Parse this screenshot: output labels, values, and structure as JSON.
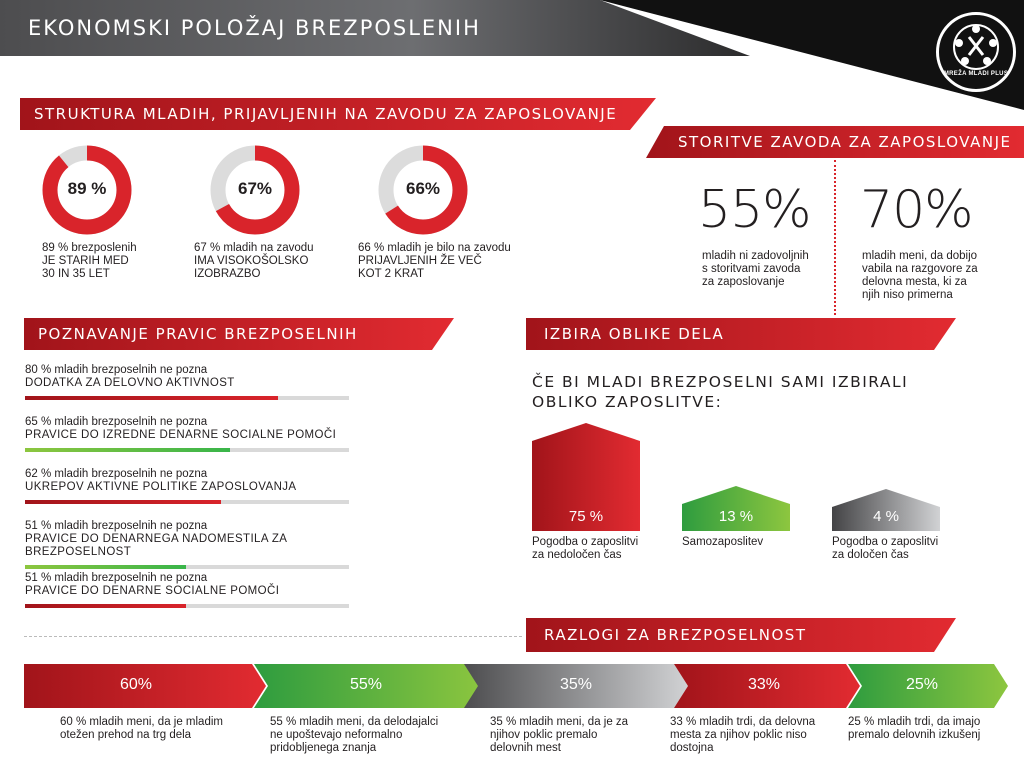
{
  "title": "EKONOMSKI POLOŽAJ BREZPOSLENIH",
  "logo": {
    "text": "MREŽA MLADI PLUS",
    "icon": "globe-people-icon"
  },
  "structure": {
    "heading": "STRUKTURA MLADIH, PRIJAVLJENIH NA ZAVODU ZA ZAPOSLOVANJE",
    "items": [
      {
        "pct": 89,
        "pct_label": "89 %",
        "line1": "89 % brezposlenih",
        "line2": "JE STARIH MED",
        "line3": "30 IN 35 LET"
      },
      {
        "pct": 67,
        "pct_label": "67%",
        "line1": "67 % mladih na zavodu",
        "line2": "IMA VISOKOŠOLSKO",
        "line3": "IZOBRAZBO"
      },
      {
        "pct": 66,
        "pct_label": "66%",
        "line1": "66 % mladih je bilo na zavodu",
        "line2": "PRIJAVLJENIH ŽE VEČ",
        "line3": "KOT 2 KRAT"
      }
    ]
  },
  "services": {
    "heading": "STORITVE ZAVODA ZA ZAPOSLOVANJE",
    "items": [
      {
        "pct_label": "55%",
        "text": [
          "mladih ni zadovoljnih",
          "s storitvami zavoda",
          "za zaposlovanje"
        ]
      },
      {
        "pct_label": "70%",
        "text": [
          "mladih meni, da dobijo",
          "vabila na razgovore za",
          "delovna mesta, ki za",
          "njih niso primerna"
        ]
      }
    ]
  },
  "rights": {
    "heading": "POZNAVANJE PRAVIC BREZPOSELNIH",
    "items": [
      {
        "pct": 80,
        "line1": "80 % mladih brezposelnih ne pozna",
        "line2": "DODATKA ZA DELOVNO AKTIVNOST",
        "color": "#d9242b"
      },
      {
        "pct": 65,
        "line1": "65 % mladih brezposelnih ne pozna",
        "line2": "PRAVICE DO IZREDNE DENARNE SOCIALNE POMOČI",
        "color": "#39b54a"
      },
      {
        "pct": 62,
        "line1": "62 % mladih brezposelnih ne pozna",
        "line2": "UKREPOV AKTIVNE POLITIKE ZAPOSLOVANJA",
        "color": "#d9242b"
      },
      {
        "pct": 51,
        "line1": "51 % mladih brezposelnih ne pozna",
        "line2": "PRAVICE DO DENARNEGA NADOMESTILA ZA BREZPOSELNOST",
        "color": "#39b54a"
      },
      {
        "pct": 51,
        "line1": "51 % mladih brezposelnih ne pozna",
        "line2": "PRAVICE DO DENARNE SOCIALNE POMOČI",
        "color": "#d9242b"
      }
    ]
  },
  "work_form": {
    "heading": "IZBIRA OBLIKE DELA",
    "question": [
      "ČE BI MLADI BREZPOSELNI SAMI IZBIRALI",
      "OBLIKO ZAPOSLITVE:"
    ],
    "items": [
      {
        "pct": 75,
        "pct_label": "75 %",
        "label": [
          "Pogodba o zaposlitvi",
          "za nedoločen čas"
        ],
        "color": "#d9242b"
      },
      {
        "pct": 13,
        "pct_label": "13 %",
        "label": [
          "Samozaposlitev"
        ],
        "color": "#39b54a"
      },
      {
        "pct": 4,
        "pct_label": "4 %",
        "label": [
          "Pogodba o zaposlitvi",
          "za določen čas"
        ],
        "color": "#6d6e71"
      }
    ]
  },
  "reasons": {
    "heading": "RAZLOGI ZA BREZPOSELNOST",
    "items": [
      {
        "pct": 60,
        "pct_label": "60%",
        "text": [
          "60 % mladih meni, da je mladim",
          "otežen prehod na trg dela"
        ],
        "color": "#d9242b"
      },
      {
        "pct": 55,
        "pct_label": "55%",
        "text": [
          "55 % mladih meni, da delodajalci",
          "ne upoštevajo neformalno",
          "pridobljenega znanja"
        ],
        "color": "#39b54a"
      },
      {
        "pct": 35,
        "pct_label": "35%",
        "text": [
          "35 % mladih meni, da je za",
          "njihov poklic premalo",
          "delovnih mest"
        ],
        "color": "#6d6e71"
      },
      {
        "pct": 33,
        "pct_label": "33%",
        "text": [
          "33 % mladih trdi, da delovna",
          "mesta za njihov poklic niso",
          "dostojna"
        ],
        "color": "#d9242b"
      },
      {
        "pct": 25,
        "pct_label": "25%",
        "text": [
          "25 % mladih trdi, da imajo",
          "premalo delovnih izkušenj"
        ],
        "color": "#39b54a"
      }
    ]
  }
}
